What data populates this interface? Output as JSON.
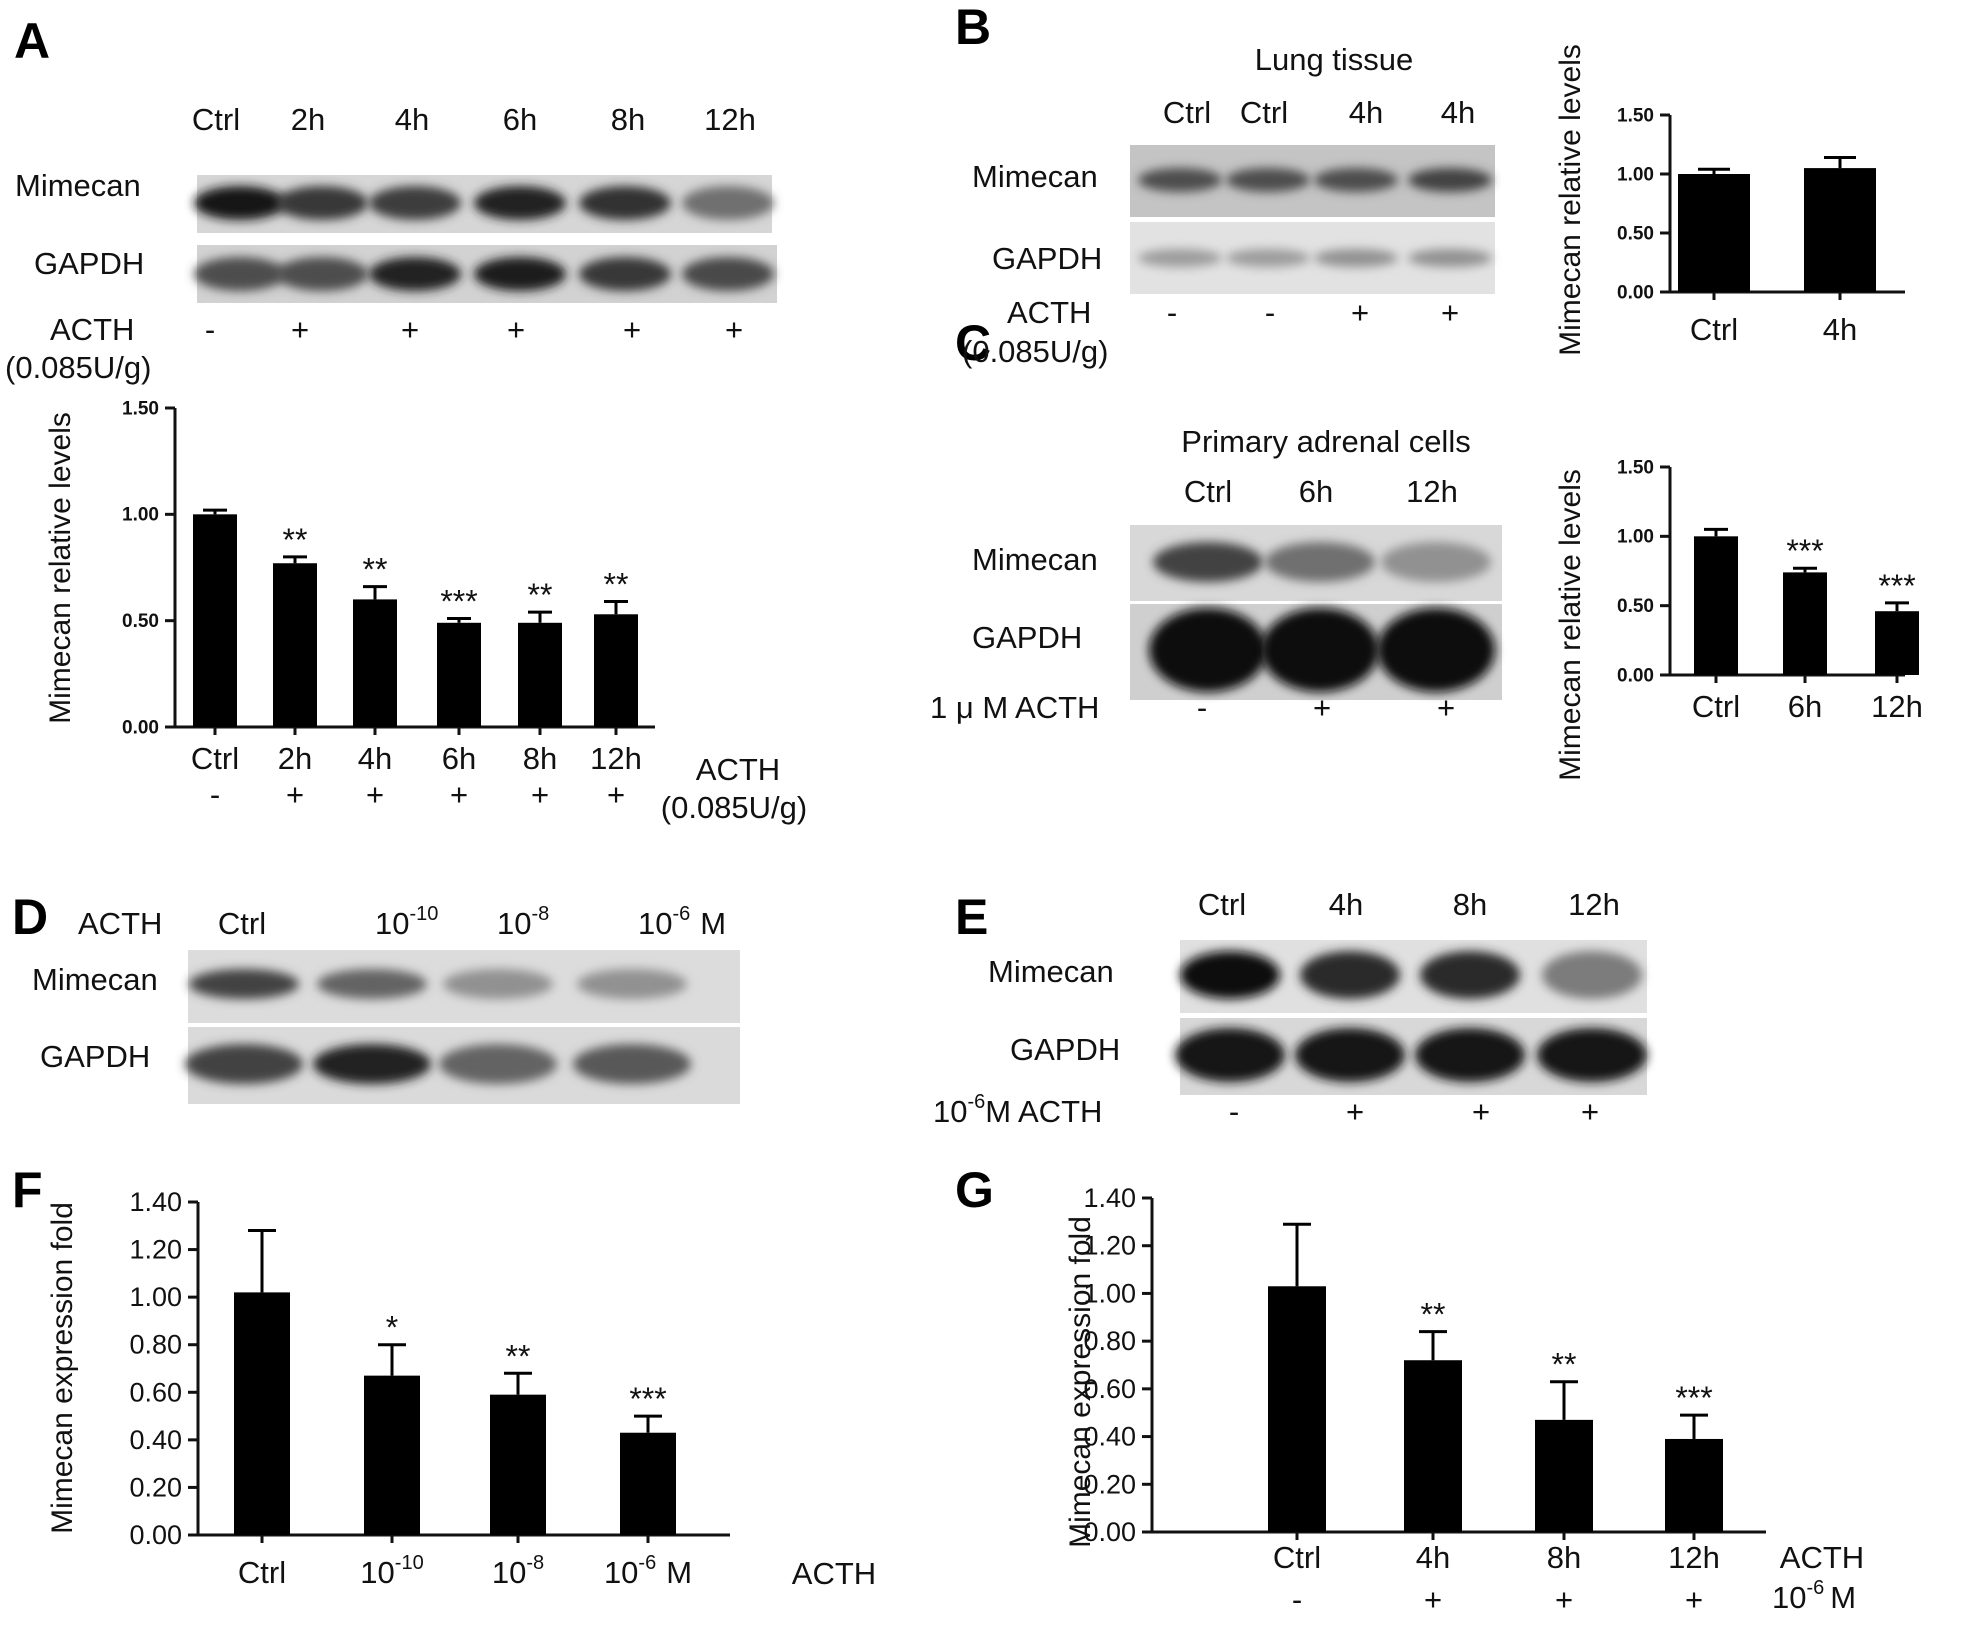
{
  "panels": {
    "A": {
      "label": "A",
      "blot": {
        "lanes": [
          "Ctrl",
          "2h",
          "4h",
          "6h",
          "8h",
          "12h"
        ],
        "rows": [
          "Mimecan",
          "GAPDH"
        ],
        "treatment": "ACTH",
        "dose": "(0.085U/g)",
        "signs": [
          "-",
          "+",
          "+",
          "+",
          "+",
          "+"
        ],
        "mimecan_intensity": [
          0.95,
          0.8,
          0.78,
          0.9,
          0.82,
          0.55
        ],
        "gapdh_intensity": [
          0.7,
          0.7,
          0.9,
          0.92,
          0.8,
          0.72
        ]
      }
    },
    "B": {
      "label": "B",
      "blot": {
        "title": "Lung tissue",
        "lanes": [
          "Ctrl",
          "Ctrl",
          "4h",
          "4h"
        ],
        "rows": [
          "Mimecan",
          "GAPDH"
        ],
        "treatment": "ACTH",
        "dose": "(0.085U/g)",
        "signs": [
          "-",
          "-",
          "+",
          "+"
        ],
        "mimecan_intensity": [
          0.7,
          0.7,
          0.7,
          0.75
        ],
        "gapdh_intensity": [
          0.35,
          0.35,
          0.4,
          0.4
        ]
      }
    },
    "C": {
      "label": "C",
      "blot": {
        "title": "Primary adrenal cells",
        "lanes": [
          "Ctrl",
          "6h",
          "12h"
        ],
        "rows": [
          "Mimecan",
          "GAPDH"
        ],
        "treatment": "1 μ M  ACTH",
        "signs": [
          "-",
          "+",
          "+"
        ],
        "mimecan_intensity": [
          0.75,
          0.55,
          0.4
        ],
        "gapdh_intensity": [
          1.0,
          1.0,
          1.0
        ]
      }
    },
    "D": {
      "label": "D",
      "blot": {
        "treatment": "ACTH",
        "lanes": [
          {
            "base": "Ctrl",
            "exp": ""
          },
          {
            "base": "10",
            "exp": "-10"
          },
          {
            "base": "10",
            "exp": "-8"
          },
          {
            "base": "10",
            "exp": "-6",
            "unit": "M"
          }
        ],
        "rows": [
          "Mimecan",
          "GAPDH"
        ],
        "mimecan_intensity": [
          0.75,
          0.6,
          0.4,
          0.4
        ],
        "gapdh_intensity": [
          0.75,
          0.9,
          0.6,
          0.65
        ]
      }
    },
    "E": {
      "label": "E",
      "blot": {
        "lanes": [
          "Ctrl",
          "4h",
          "8h",
          "12h"
        ],
        "rows": [
          "Mimecan",
          "GAPDH"
        ],
        "treatment_base": "10",
        "treatment_exp": "-6",
        "treatment_rest": "M  ACTH",
        "signs": [
          "-",
          "+",
          "+",
          "+"
        ],
        "mimecan_intensity": [
          1.0,
          0.85,
          0.85,
          0.5
        ],
        "gapdh_intensity": [
          0.95,
          0.95,
          0.95,
          0.95
        ]
      }
    },
    "F": {
      "label": "F"
    },
    "G": {
      "label": "G"
    }
  },
  "chart_data": [
    {
      "id": "A",
      "type": "bar",
      "categories": [
        "Ctrl",
        "2h",
        "4h",
        "6h",
        "8h",
        "12h"
      ],
      "signs": [
        "-",
        "+",
        "+",
        "+",
        "+",
        "+"
      ],
      "values": [
        1.0,
        0.77,
        0.6,
        0.49,
        0.49,
        0.53
      ],
      "errors": [
        0.02,
        0.03,
        0.06,
        0.02,
        0.05,
        0.06
      ],
      "significance": [
        "",
        "**",
        "**",
        "***",
        "**",
        "**"
      ],
      "ylabel": "Mimecan relative levels",
      "xlabel": "ACTH",
      "xlabel2": "(0.085U/g)",
      "ylim": [
        0,
        1.5
      ],
      "yticks": [
        "0.00",
        "0.50",
        "1.00",
        "1.50"
      ]
    },
    {
      "id": "B",
      "type": "bar",
      "categories": [
        "Ctrl",
        "4h"
      ],
      "values": [
        1.0,
        1.05
      ],
      "errors": [
        0.04,
        0.09
      ],
      "significance": [
        "",
        ""
      ],
      "ylabel": "Mimecan relative levels",
      "ylim": [
        0,
        1.5
      ],
      "yticks": [
        "0.00",
        "0.50",
        "1.00",
        "1.50"
      ]
    },
    {
      "id": "C",
      "type": "bar",
      "categories": [
        "Ctrl",
        "6h",
        "12h"
      ],
      "values": [
        1.0,
        0.74,
        0.46
      ],
      "errors": [
        0.05,
        0.03,
        0.06
      ],
      "significance": [
        "",
        "***",
        "***"
      ],
      "ylabel": "Mimecan relative levels",
      "ylim": [
        0,
        1.5
      ],
      "yticks": [
        "0.00",
        "0.50",
        "1.00",
        "1.50"
      ]
    },
    {
      "id": "F",
      "type": "bar",
      "categories": [
        {
          "base": "Ctrl",
          "exp": ""
        },
        {
          "base": "10",
          "exp": "-10"
        },
        {
          "base": "10",
          "exp": "-8"
        },
        {
          "base": "10",
          "exp": "-6",
          "unit": "M"
        }
      ],
      "values": [
        1.02,
        0.67,
        0.59,
        0.43
      ],
      "errors": [
        0.26,
        0.13,
        0.09,
        0.07
      ],
      "significance": [
        "",
        "*",
        "**",
        "***"
      ],
      "ylabel": "Mimecan expression fold",
      "xlabel": "ACTH",
      "ylim": [
        0,
        1.4
      ],
      "yticks": [
        "0.00",
        "0.20",
        "0.40",
        "0.60",
        "0.80",
        "1.00",
        "1.20",
        "1.40"
      ]
    },
    {
      "id": "G",
      "type": "bar",
      "categories": [
        "Ctrl",
        "4h",
        "8h",
        "12h"
      ],
      "signs": [
        "-",
        "+",
        "+",
        "+"
      ],
      "values": [
        1.03,
        0.72,
        0.47,
        0.39
      ],
      "errors": [
        0.26,
        0.12,
        0.16,
        0.1
      ],
      "significance": [
        "",
        "**",
        "**",
        "***"
      ],
      "ylabel": "Mimecan expression fold",
      "xlabel": "ACTH",
      "xlabel2_base": "10",
      "xlabel2_exp": "-6",
      "xlabel2_unit": "M",
      "ylim": [
        0,
        1.4
      ],
      "yticks": [
        "0.00",
        "0.20",
        "0.40",
        "0.60",
        "0.80",
        "1.00",
        "1.20",
        "1.40"
      ]
    }
  ]
}
